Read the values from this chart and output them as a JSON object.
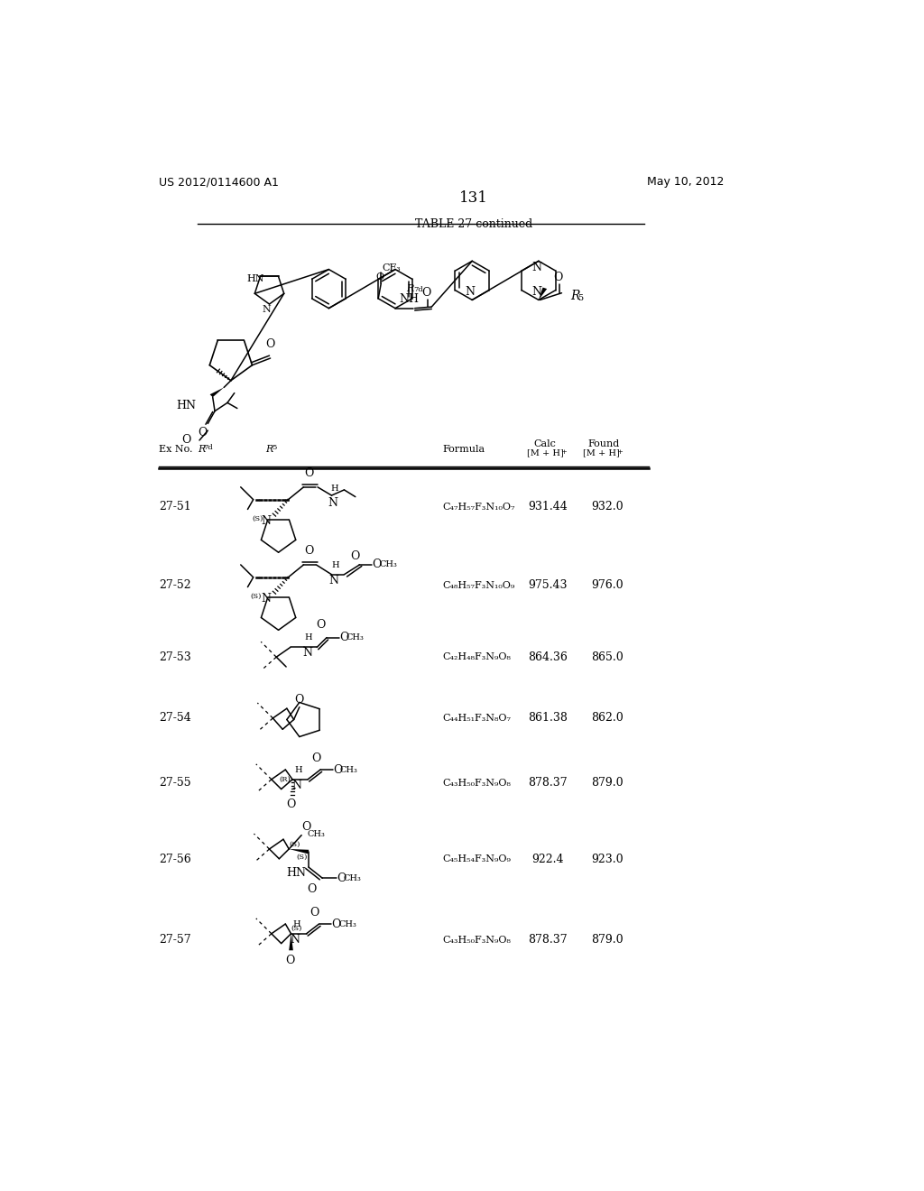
{
  "page_number": "131",
  "patent_number": "US 2012/0114600 A1",
  "patent_date": "May 10, 2012",
  "table_title": "TABLE 27-continued",
  "background_color": "#ffffff",
  "rows": [
    {
      "ex_no": "27-51",
      "formula": "C₄₇H₅₇F₃N₁₀O₇",
      "calc": "931.44",
      "found": "932.0"
    },
    {
      "ex_no": "27-52",
      "formula": "C₄₈H₅₇F₃N₁₀O₉",
      "calc": "975.43",
      "found": "976.0"
    },
    {
      "ex_no": "27-53",
      "formula": "C₄₂H₄₈F₃N₉O₈",
      "calc": "864.36",
      "found": "865.0"
    },
    {
      "ex_no": "27-54",
      "formula": "C₄₄H₅₁F₃N₈O₇",
      "calc": "861.38",
      "found": "862.0"
    },
    {
      "ex_no": "27-55",
      "formula": "C₄₃H₅₀F₃N₉O₈",
      "calc": "878.37",
      "found": "879.0"
    },
    {
      "ex_no": "27-56",
      "formula": "C₄₅H₅₄F₃N₉O₉",
      "calc": "922.4",
      "found": "923.0"
    },
    {
      "ex_no": "27-57",
      "formula": "C₄₃H₅₀F₃N₉O₈",
      "calc": "878.37",
      "found": "879.0"
    }
  ]
}
